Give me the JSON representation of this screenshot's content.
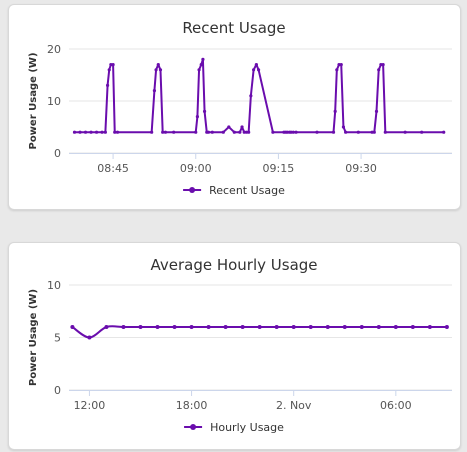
{
  "chart_data": [
    {
      "type": "line",
      "title": "Recent Usage",
      "ylabel": "Power Usage (W)",
      "xlabel": "",
      "ylim": [
        0,
        20
      ],
      "yticks": [
        0,
        10,
        20
      ],
      "xticks": [
        "08:45",
        "09:00",
        "09:15",
        "09:30"
      ],
      "xtick_minutes": [
        45,
        60,
        75,
        90
      ],
      "xlim_minutes": [
        37,
        106.5
      ],
      "legend": "bottom-center",
      "color": "#6a0dad",
      "series": [
        {
          "name": "Recent Usage",
          "x_minutes": [
            38,
            39,
            40,
            41,
            42,
            43,
            43.6,
            44,
            44.3,
            44.6,
            45,
            45.3,
            45.8,
            52,
            52.5,
            52.8,
            53.2,
            53.6,
            54,
            54.5,
            56,
            60,
            60.3,
            60.6,
            61,
            61.3,
            61.6,
            62,
            62.3,
            63,
            65,
            66,
            67,
            68,
            68.4,
            68.8,
            69.2,
            69.6,
            70,
            70.5,
            71,
            71.4,
            74,
            76,
            76.3,
            76.6,
            77,
            77.3,
            77.7,
            78.2,
            82,
            85,
            85.3,
            85.6,
            86,
            86.4,
            86.8,
            87.2,
            89.5,
            92,
            92.4,
            92.8,
            93.2,
            93.6,
            94,
            94.4,
            98,
            101,
            105
          ],
          "y_minutes_values": [
            4,
            4,
            4,
            4,
            4,
            4,
            4,
            13,
            16,
            17,
            17,
            4,
            4,
            4,
            12,
            16,
            17,
            16,
            4,
            4,
            4,
            4,
            7,
            16,
            17,
            18,
            8,
            4,
            4,
            4,
            4,
            5,
            4,
            4,
            5,
            4,
            4,
            4,
            11,
            16,
            17,
            16,
            4,
            4,
            4,
            4,
            4,
            4,
            4,
            4,
            4,
            4,
            8,
            16,
            17,
            17,
            5,
            4,
            4,
            4,
            4,
            8,
            16,
            17,
            17,
            4,
            4,
            4,
            4
          ]
        }
      ]
    },
    {
      "type": "line",
      "title": "Average Hourly Usage",
      "ylabel": "Power Usage (W)",
      "xlabel": "",
      "ylim": [
        0,
        10
      ],
      "yticks": [
        0,
        5,
        10
      ],
      "xticks": [
        "12:00",
        "18:00",
        "2. Nov",
        "06:00"
      ],
      "xtick_hours": [
        12,
        18,
        24,
        30
      ],
      "xlim_hours": [
        10.8,
        33.3
      ],
      "legend": "bottom-center",
      "color": "#6a0dad",
      "series": [
        {
          "name": "Hourly Usage",
          "x_hours": [
            11,
            12,
            13,
            14,
            15,
            16,
            17,
            18,
            19,
            20,
            21,
            22,
            23,
            24,
            25,
            26,
            27,
            28,
            29,
            30,
            31,
            32,
            33
          ],
          "values": [
            6,
            5,
            6,
            6,
            6,
            6,
            6,
            6,
            6,
            6,
            6,
            6,
            6,
            6,
            6,
            6,
            6,
            6,
            6,
            6,
            6,
            6,
            6
          ]
        }
      ]
    }
  ]
}
